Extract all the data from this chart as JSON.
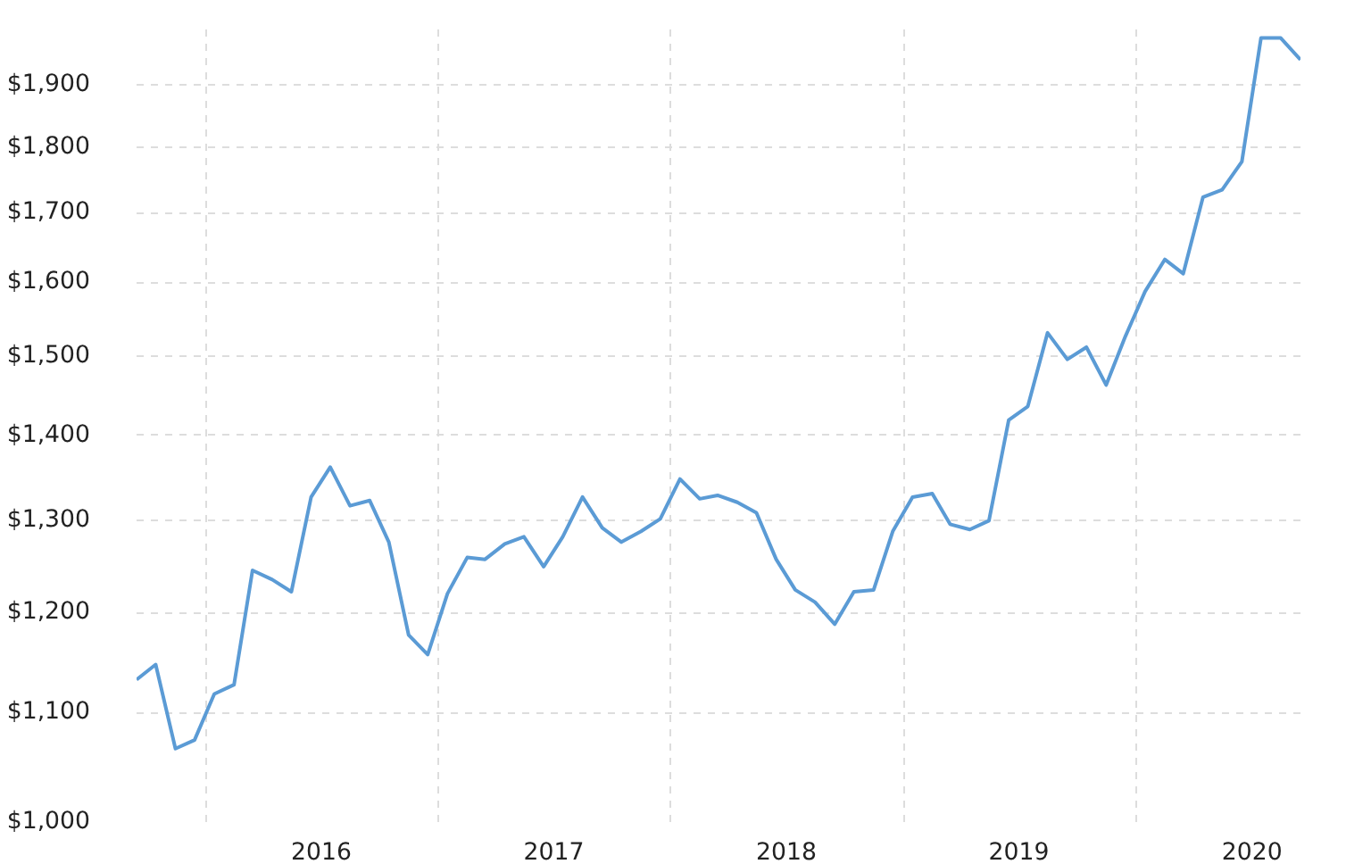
{
  "chart_data": {
    "type": "line",
    "x": [
      "2015-09-15",
      "2015-10-15",
      "2015-11-15",
      "2015-12-15",
      "2016-01-15",
      "2016-02-15",
      "2016-03-15",
      "2016-04-15",
      "2016-05-15",
      "2016-06-15",
      "2016-07-15",
      "2016-08-15",
      "2016-09-15",
      "2016-10-15",
      "2016-11-15",
      "2016-12-15",
      "2017-01-15",
      "2017-02-15",
      "2017-03-15",
      "2017-04-15",
      "2017-05-15",
      "2017-06-15",
      "2017-07-15",
      "2017-08-15",
      "2017-09-15",
      "2017-10-15",
      "2017-11-15",
      "2017-12-15",
      "2018-01-15",
      "2018-02-15",
      "2018-03-15",
      "2018-04-15",
      "2018-05-15",
      "2018-06-15",
      "2018-07-15",
      "2018-08-15",
      "2018-09-15",
      "2018-10-15",
      "2018-11-15",
      "2018-12-15",
      "2019-01-15",
      "2019-02-15",
      "2019-03-15",
      "2019-04-15",
      "2019-05-15",
      "2019-06-15",
      "2019-07-15",
      "2019-08-15",
      "2019-09-15",
      "2019-10-15",
      "2019-11-15",
      "2019-12-15",
      "2020-01-15",
      "2020-02-15",
      "2020-03-15",
      "2020-04-15",
      "2020-05-15",
      "2020-06-15",
      "2020-07-15",
      "2020-08-15",
      "2020-09-15"
    ],
    "series": [
      {
        "color": "#5b9bd5",
        "values": [
          1132,
          1147,
          1066,
          1074,
          1118,
          1127,
          1245,
          1235,
          1222,
          1327,
          1362,
          1317,
          1323,
          1276,
          1177,
          1157,
          1220,
          1259,
          1257,
          1274,
          1282,
          1249,
          1282,
          1327,
          1292,
          1276,
          1288,
          1302,
          1348,
          1325,
          1329,
          1321,
          1309,
          1257,
          1224,
          1211,
          1188,
          1222,
          1224,
          1288,
          1327,
          1331,
          1296,
          1290,
          1300,
          1419,
          1436,
          1531,
          1496,
          1512,
          1463,
          1526,
          1587,
          1632,
          1612,
          1723,
          1734,
          1777,
          1979,
          1979,
          1942
        ]
      }
    ],
    "log": "y",
    "xlim": [
      "2015-09-15",
      "2020-09-15"
    ],
    "ylim": [
      1000,
      2000
    ],
    "yticks": [
      {
        "value": 1000,
        "label": "$1,000"
      },
      {
        "value": 1100,
        "label": "$1,100"
      },
      {
        "value": 1200,
        "label": "$1,200"
      },
      {
        "value": 1300,
        "label": "$1,300"
      },
      {
        "value": 1400,
        "label": "$1,400"
      },
      {
        "value": 1500,
        "label": "$1,500"
      },
      {
        "value": 1600,
        "label": "$1,600"
      },
      {
        "value": 1700,
        "label": "$1,700"
      },
      {
        "value": 1800,
        "label": "$1,800"
      },
      {
        "value": 1900,
        "label": "$1,900"
      }
    ],
    "xticks": [
      {
        "value": "2016-01-01",
        "label": null
      },
      {
        "value": "2016-07-01",
        "label": "2016"
      },
      {
        "value": "2017-01-01",
        "label": null
      },
      {
        "value": "2017-07-01",
        "label": "2017"
      },
      {
        "value": "2018-01-01",
        "label": null
      },
      {
        "value": "2018-07-01",
        "label": "2018"
      },
      {
        "value": "2019-01-01",
        "label": null
      },
      {
        "value": "2019-07-01",
        "label": "2019"
      },
      {
        "value": "2020-01-01",
        "label": null
      },
      {
        "value": "2020-07-01",
        "label": "2020"
      }
    ],
    "grid": true,
    "line_style": "solid",
    "marker": "none"
  }
}
